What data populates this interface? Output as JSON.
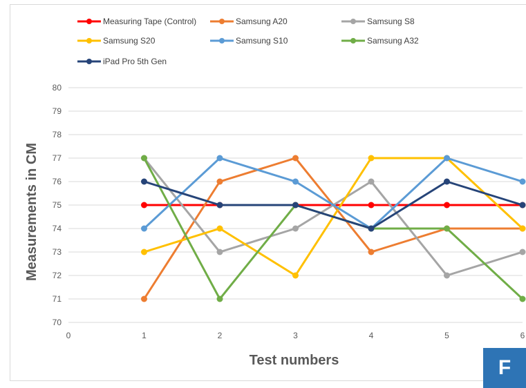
{
  "panel_label": "F",
  "colors": {
    "badge": "#2e74b5",
    "grid": "#d9d9d9"
  },
  "chart_data": {
    "type": "line",
    "title": "",
    "xlabel": "Test numbers",
    "ylabel": "Measurements in CM",
    "xlim": [
      0,
      6
    ],
    "ylim": [
      70,
      80
    ],
    "x_ticks": [
      0,
      1,
      2,
      3,
      4,
      5,
      6
    ],
    "y_ticks": [
      70,
      71,
      72,
      73,
      74,
      75,
      76,
      77,
      78,
      79,
      80
    ],
    "grid": "horizontal",
    "legend_position": "top",
    "x": [
      1,
      2,
      3,
      4,
      5,
      6
    ],
    "series": [
      {
        "name": "Measuring Tape (Control)",
        "color": "#ff0000",
        "values": [
          75,
          75,
          75,
          75,
          75,
          75
        ]
      },
      {
        "name": "Samsung A20",
        "color": "#ed7d31",
        "values": [
          71,
          76,
          77,
          73,
          74,
          74
        ]
      },
      {
        "name": "Samsung S8",
        "color": "#a5a5a5",
        "values": [
          77,
          73,
          74,
          76,
          72,
          73
        ]
      },
      {
        "name": "Samsung S20",
        "color": "#ffc000",
        "values": [
          73,
          74,
          72,
          77,
          77,
          74
        ]
      },
      {
        "name": "Samsung S10",
        "color": "#5b9bd5",
        "values": [
          74,
          77,
          76,
          74,
          77,
          76
        ]
      },
      {
        "name": "Samsung A32",
        "color": "#70ad47",
        "values": [
          77,
          71,
          75,
          74,
          74,
          71
        ]
      },
      {
        "name": "iPad Pro 5th Gen",
        "color": "#264478",
        "values": [
          76,
          75,
          75,
          74,
          76,
          75
        ]
      }
    ]
  }
}
